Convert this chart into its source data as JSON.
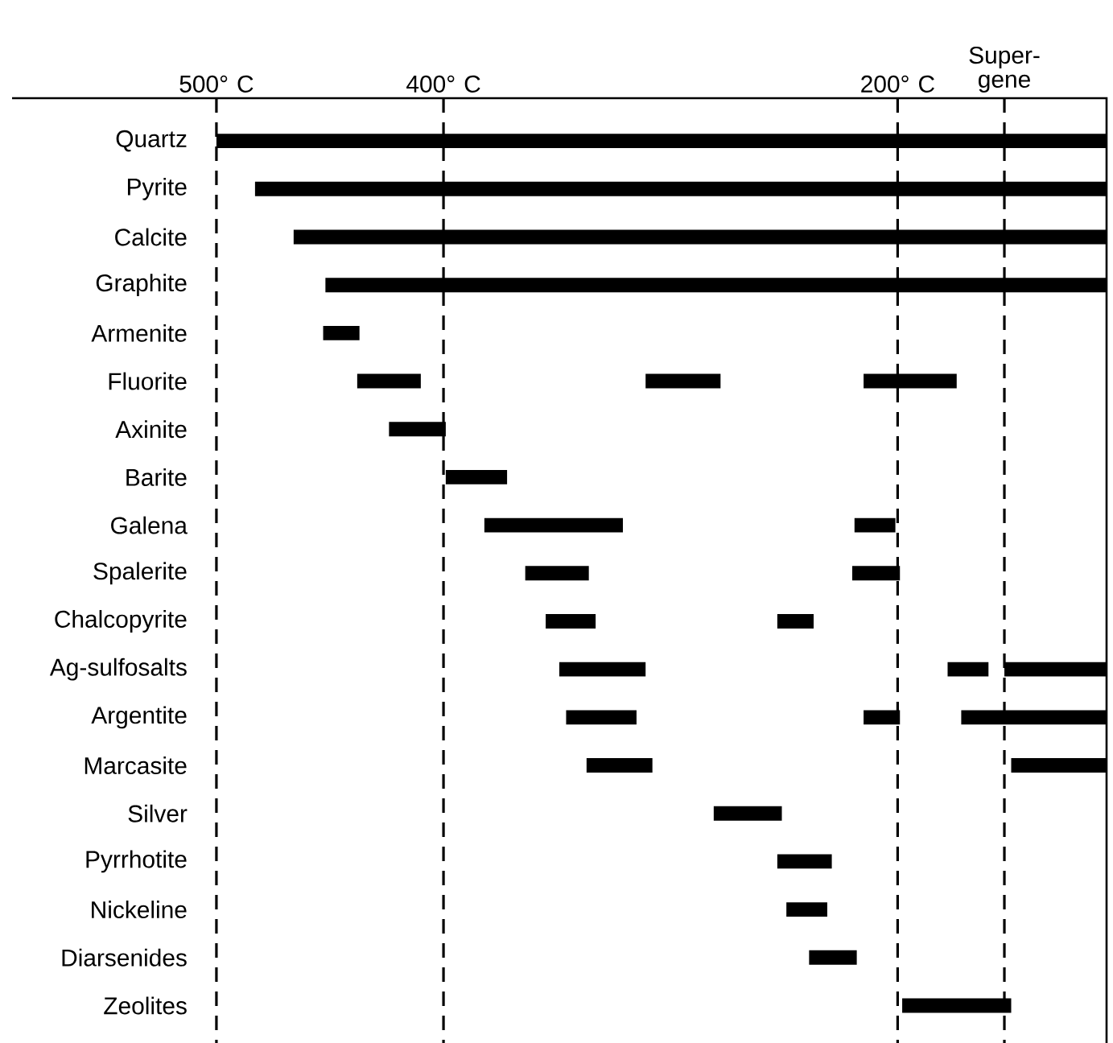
{
  "chart_data": {
    "type": "bar",
    "orientation": "horizontal",
    "categories": [
      "Quartz",
      "Pyrite",
      "Calcite",
      "Graphite",
      "Armenite",
      "Fluorite",
      "Axinite",
      "Barite",
      "Galena",
      "Spalerite",
      "Chalcopyrite",
      "Ag-sulfosalts",
      "Argentite",
      "Marcasite",
      "Silver",
      "Pyrrhotite",
      "Nickeline",
      "Diarsenides",
      "Zeolites"
    ],
    "series": [
      {
        "color": "#000000",
        "base": [
          108,
          108,
          108,
          108,
          437,
          410,
          399,
          372,
          321,
          336,
          333,
          311,
          315,
          308,
          251,
          229,
          231,
          218,
          150
        ],
        "values": [
          392,
          375,
          358,
          344,
          16,
          28,
          25,
          27,
          61,
          28,
          22,
          38,
          31,
          29,
          30,
          24,
          18,
          21,
          48
        ]
      },
      {
        "color": "#000000",
        "base": [
          null,
          null,
          null,
          null,
          null,
          278,
          null,
          null,
          201,
          199,
          237,
          160,
          199,
          108,
          null,
          null,
          null,
          null,
          null
        ],
        "values": [
          null,
          null,
          null,
          null,
          null,
          33,
          null,
          null,
          18,
          21,
          16,
          18,
          16,
          42,
          null,
          null,
          null,
          null,
          null
        ]
      },
      {
        "color": "#000000",
        "base": [
          null,
          null,
          null,
          null,
          null,
          174,
          null,
          null,
          null,
          null,
          null,
          108,
          108,
          null,
          null,
          null,
          null,
          null,
          null
        ],
        "values": [
          null,
          null,
          null,
          null,
          null,
          41,
          null,
          null,
          null,
          null,
          null,
          45,
          64,
          null,
          null,
          null,
          null,
          null,
          null
        ]
      }
    ],
    "xlim": [
      590,
      108
    ],
    "xticks": [
      {
        "value": 500,
        "label": "500° C"
      },
      {
        "value": 400,
        "label": "400° C"
      },
      {
        "value": 200,
        "label": "200° C"
      },
      {
        "value": 153,
        "label": "Super-gene"
      }
    ],
    "ref_lines": [
      {
        "axis": "x",
        "value": 500,
        "color": "#000000",
        "line_style": "dashed"
      },
      {
        "axis": "x",
        "value": 400,
        "color": "#000000",
        "line_style": "dashed"
      },
      {
        "axis": "x",
        "value": 200,
        "color": "#000000",
        "line_style": "dashed"
      },
      {
        "axis": "x",
        "value": 153,
        "color": "#000000",
        "line_style": "dashed"
      }
    ]
  }
}
